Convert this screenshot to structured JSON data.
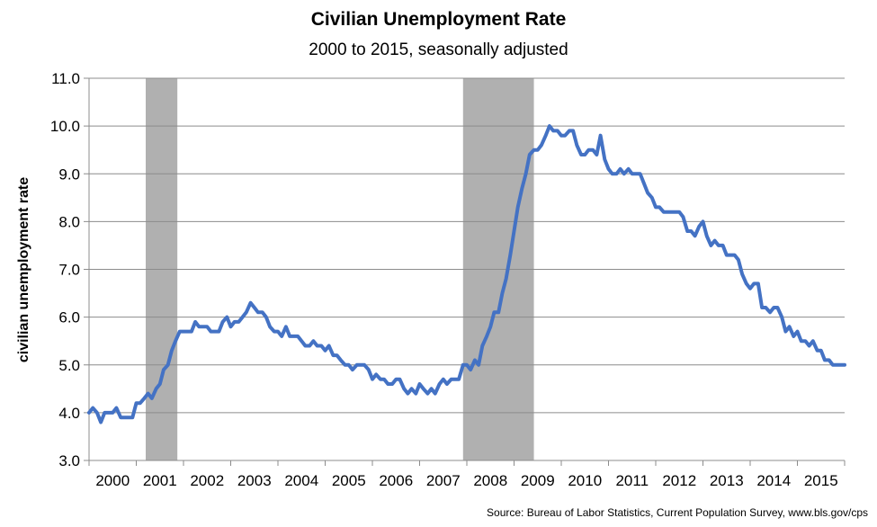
{
  "chart_data": {
    "type": "line",
    "title": "Civilian Unemployment Rate",
    "subtitle": "2000 to 2015, seasonally adjusted",
    "xlabel": "",
    "ylabel": "civilian unemployment rate",
    "ylim": [
      3.0,
      11.0
    ],
    "y_ticks": [
      "3.0",
      "4.0",
      "5.0",
      "6.0",
      "7.0",
      "8.0",
      "9.0",
      "10.0",
      "11.0"
    ],
    "x_range": [
      2000,
      2016
    ],
    "x_ticks": [
      2000,
      2001,
      2002,
      2003,
      2004,
      2005,
      2006,
      2007,
      2008,
      2009,
      2010,
      2011,
      2012,
      2013,
      2014,
      2015,
      2016
    ],
    "x_labels": [
      "2000",
      "2001",
      "2002",
      "2003",
      "2004",
      "2005",
      "2006",
      "2007",
      "2008",
      "2009",
      "2010",
      "2011",
      "2012",
      "2013",
      "2014",
      "2015"
    ],
    "grid": true,
    "series_color": "#4472C4",
    "recession_color": "#B0B0B0",
    "recessions": [
      {
        "start": 2001.2,
        "end": 2001.87
      },
      {
        "start": 2007.92,
        "end": 2009.42
      }
    ],
    "series": [
      {
        "points": [
          [
            2000.0,
            4.0
          ],
          [
            2000.08,
            4.1
          ],
          [
            2000.17,
            4.0
          ],
          [
            2000.25,
            3.8
          ],
          [
            2000.33,
            4.0
          ],
          [
            2000.42,
            4.0
          ],
          [
            2000.5,
            4.0
          ],
          [
            2000.58,
            4.1
          ],
          [
            2000.67,
            3.9
          ],
          [
            2000.75,
            3.9
          ],
          [
            2000.83,
            3.9
          ],
          [
            2000.92,
            3.9
          ],
          [
            2001.0,
            4.2
          ],
          [
            2001.08,
            4.2
          ],
          [
            2001.17,
            4.3
          ],
          [
            2001.25,
            4.4
          ],
          [
            2001.33,
            4.3
          ],
          [
            2001.42,
            4.5
          ],
          [
            2001.5,
            4.6
          ],
          [
            2001.58,
            4.9
          ],
          [
            2001.67,
            5.0
          ],
          [
            2001.75,
            5.3
          ],
          [
            2001.83,
            5.5
          ],
          [
            2001.92,
            5.7
          ],
          [
            2002.0,
            5.7
          ],
          [
            2002.08,
            5.7
          ],
          [
            2002.17,
            5.7
          ],
          [
            2002.25,
            5.9
          ],
          [
            2002.33,
            5.8
          ],
          [
            2002.42,
            5.8
          ],
          [
            2002.5,
            5.8
          ],
          [
            2002.58,
            5.7
          ],
          [
            2002.67,
            5.7
          ],
          [
            2002.75,
            5.7
          ],
          [
            2002.83,
            5.9
          ],
          [
            2002.92,
            6.0
          ],
          [
            2003.0,
            5.8
          ],
          [
            2003.08,
            5.9
          ],
          [
            2003.17,
            5.9
          ],
          [
            2003.25,
            6.0
          ],
          [
            2003.33,
            6.1
          ],
          [
            2003.42,
            6.3
          ],
          [
            2003.5,
            6.2
          ],
          [
            2003.58,
            6.1
          ],
          [
            2003.67,
            6.1
          ],
          [
            2003.75,
            6.0
          ],
          [
            2003.83,
            5.8
          ],
          [
            2003.92,
            5.7
          ],
          [
            2004.0,
            5.7
          ],
          [
            2004.08,
            5.6
          ],
          [
            2004.17,
            5.8
          ],
          [
            2004.25,
            5.6
          ],
          [
            2004.33,
            5.6
          ],
          [
            2004.42,
            5.6
          ],
          [
            2004.5,
            5.5
          ],
          [
            2004.58,
            5.4
          ],
          [
            2004.67,
            5.4
          ],
          [
            2004.75,
            5.5
          ],
          [
            2004.83,
            5.4
          ],
          [
            2004.92,
            5.4
          ],
          [
            2005.0,
            5.3
          ],
          [
            2005.08,
            5.4
          ],
          [
            2005.17,
            5.2
          ],
          [
            2005.25,
            5.2
          ],
          [
            2005.33,
            5.1
          ],
          [
            2005.42,
            5.0
          ],
          [
            2005.5,
            5.0
          ],
          [
            2005.58,
            4.9
          ],
          [
            2005.67,
            5.0
          ],
          [
            2005.75,
            5.0
          ],
          [
            2005.83,
            5.0
          ],
          [
            2005.92,
            4.9
          ],
          [
            2006.0,
            4.7
          ],
          [
            2006.08,
            4.8
          ],
          [
            2006.17,
            4.7
          ],
          [
            2006.25,
            4.7
          ],
          [
            2006.33,
            4.6
          ],
          [
            2006.42,
            4.6
          ],
          [
            2006.5,
            4.7
          ],
          [
            2006.58,
            4.7
          ],
          [
            2006.67,
            4.5
          ],
          [
            2006.75,
            4.4
          ],
          [
            2006.83,
            4.5
          ],
          [
            2006.92,
            4.4
          ],
          [
            2007.0,
            4.6
          ],
          [
            2007.08,
            4.5
          ],
          [
            2007.17,
            4.4
          ],
          [
            2007.25,
            4.5
          ],
          [
            2007.33,
            4.4
          ],
          [
            2007.42,
            4.6
          ],
          [
            2007.5,
            4.7
          ],
          [
            2007.58,
            4.6
          ],
          [
            2007.67,
            4.7
          ],
          [
            2007.75,
            4.7
          ],
          [
            2007.83,
            4.7
          ],
          [
            2007.92,
            5.0
          ],
          [
            2008.0,
            5.0
          ],
          [
            2008.08,
            4.9
          ],
          [
            2008.17,
            5.1
          ],
          [
            2008.25,
            5.0
          ],
          [
            2008.33,
            5.4
          ],
          [
            2008.42,
            5.6
          ],
          [
            2008.5,
            5.8
          ],
          [
            2008.58,
            6.1
          ],
          [
            2008.67,
            6.1
          ],
          [
            2008.75,
            6.5
          ],
          [
            2008.83,
            6.8
          ],
          [
            2008.92,
            7.3
          ],
          [
            2009.0,
            7.8
          ],
          [
            2009.08,
            8.3
          ],
          [
            2009.17,
            8.7
          ],
          [
            2009.25,
            9.0
          ],
          [
            2009.33,
            9.4
          ],
          [
            2009.42,
            9.5
          ],
          [
            2009.5,
            9.5
          ],
          [
            2009.58,
            9.6
          ],
          [
            2009.67,
            9.8
          ],
          [
            2009.75,
            10.0
          ],
          [
            2009.83,
            9.9
          ],
          [
            2009.92,
            9.9
          ],
          [
            2010.0,
            9.8
          ],
          [
            2010.08,
            9.8
          ],
          [
            2010.17,
            9.9
          ],
          [
            2010.25,
            9.9
          ],
          [
            2010.33,
            9.6
          ],
          [
            2010.42,
            9.4
          ],
          [
            2010.5,
            9.4
          ],
          [
            2010.58,
            9.5
          ],
          [
            2010.67,
            9.5
          ],
          [
            2010.75,
            9.4
          ],
          [
            2010.83,
            9.8
          ],
          [
            2010.92,
            9.3
          ],
          [
            2011.0,
            9.1
          ],
          [
            2011.08,
            9.0
          ],
          [
            2011.17,
            9.0
          ],
          [
            2011.25,
            9.1
          ],
          [
            2011.33,
            9.0
          ],
          [
            2011.42,
            9.1
          ],
          [
            2011.5,
            9.0
          ],
          [
            2011.58,
            9.0
          ],
          [
            2011.67,
            9.0
          ],
          [
            2011.75,
            8.8
          ],
          [
            2011.83,
            8.6
          ],
          [
            2011.92,
            8.5
          ],
          [
            2012.0,
            8.3
          ],
          [
            2012.08,
            8.3
          ],
          [
            2012.17,
            8.2
          ],
          [
            2012.25,
            8.2
          ],
          [
            2012.33,
            8.2
          ],
          [
            2012.42,
            8.2
          ],
          [
            2012.5,
            8.2
          ],
          [
            2012.58,
            8.1
          ],
          [
            2012.67,
            7.8
          ],
          [
            2012.75,
            7.8
          ],
          [
            2012.83,
            7.7
          ],
          [
            2012.92,
            7.9
          ],
          [
            2013.0,
            8.0
          ],
          [
            2013.08,
            7.7
          ],
          [
            2013.17,
            7.5
          ],
          [
            2013.25,
            7.6
          ],
          [
            2013.33,
            7.5
          ],
          [
            2013.42,
            7.5
          ],
          [
            2013.5,
            7.3
          ],
          [
            2013.58,
            7.3
          ],
          [
            2013.67,
            7.3
          ],
          [
            2013.75,
            7.2
          ],
          [
            2013.83,
            6.9
          ],
          [
            2013.92,
            6.7
          ],
          [
            2014.0,
            6.6
          ],
          [
            2014.08,
            6.7
          ],
          [
            2014.17,
            6.7
          ],
          [
            2014.25,
            6.2
          ],
          [
            2014.33,
            6.2
          ],
          [
            2014.42,
            6.1
          ],
          [
            2014.5,
            6.2
          ],
          [
            2014.58,
            6.2
          ],
          [
            2014.67,
            6.0
          ],
          [
            2014.75,
            5.7
          ],
          [
            2014.83,
            5.8
          ],
          [
            2014.92,
            5.6
          ],
          [
            2015.0,
            5.7
          ],
          [
            2015.08,
            5.5
          ],
          [
            2015.17,
            5.5
          ],
          [
            2015.25,
            5.4
          ],
          [
            2015.33,
            5.5
          ],
          [
            2015.42,
            5.3
          ],
          [
            2015.5,
            5.3
          ],
          [
            2015.58,
            5.1
          ],
          [
            2015.67,
            5.1
          ],
          [
            2015.75,
            5.0
          ],
          [
            2015.83,
            5.0
          ],
          [
            2015.92,
            5.0
          ],
          [
            2016.0,
            5.0
          ]
        ]
      }
    ],
    "source": "Source: Bureau of Labor Statistics, Current Population Survey, www.bls.gov/cps"
  }
}
